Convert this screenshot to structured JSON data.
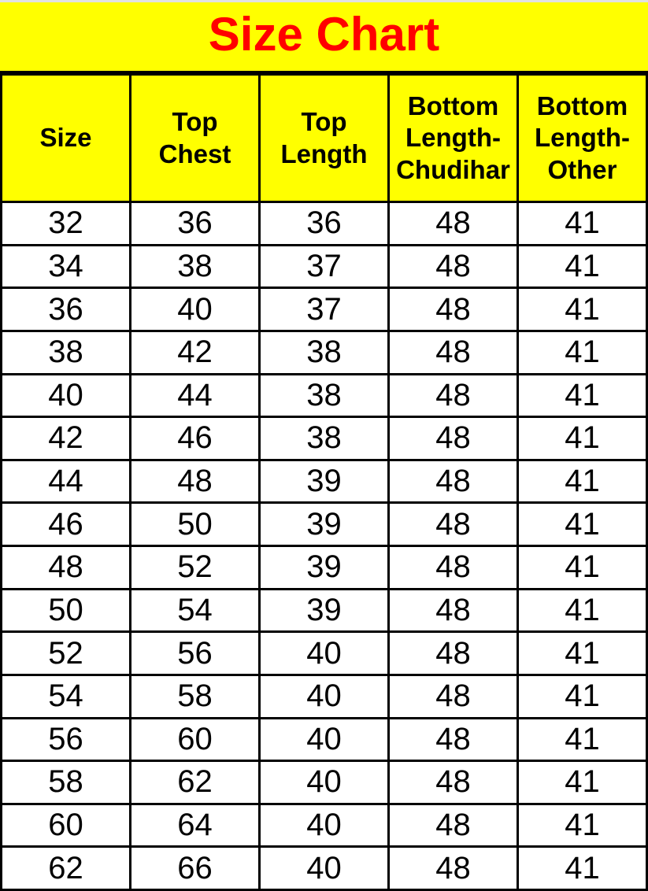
{
  "chart_data": {
    "type": "table",
    "title": "Size Chart",
    "columns": [
      "Size",
      "Top\nChest",
      "Top\nLength",
      "Bottom\nLength-\nChudihar",
      "Bottom\nLength-\nOther"
    ],
    "rows": [
      [
        32,
        36,
        36,
        48,
        41
      ],
      [
        34,
        38,
        37,
        48,
        41
      ],
      [
        36,
        40,
        37,
        48,
        41
      ],
      [
        38,
        42,
        38,
        48,
        41
      ],
      [
        40,
        44,
        38,
        48,
        41
      ],
      [
        42,
        46,
        38,
        48,
        41
      ],
      [
        44,
        48,
        39,
        48,
        41
      ],
      [
        46,
        50,
        39,
        48,
        41
      ],
      [
        48,
        52,
        39,
        48,
        41
      ],
      [
        50,
        54,
        39,
        48,
        41
      ],
      [
        52,
        56,
        40,
        48,
        41
      ],
      [
        54,
        58,
        40,
        48,
        41
      ],
      [
        56,
        60,
        40,
        48,
        41
      ],
      [
        58,
        62,
        40,
        48,
        41
      ],
      [
        60,
        64,
        40,
        48,
        41
      ],
      [
        62,
        66,
        40,
        48,
        41
      ]
    ]
  },
  "colors": {
    "banner-bg": "#ffff00",
    "title-text": "#ff0000",
    "header-bg": "#ffff00",
    "header-text": "#000000",
    "row-bg": "#ffffff",
    "cell-text": "#000000",
    "border": "#000000"
  }
}
